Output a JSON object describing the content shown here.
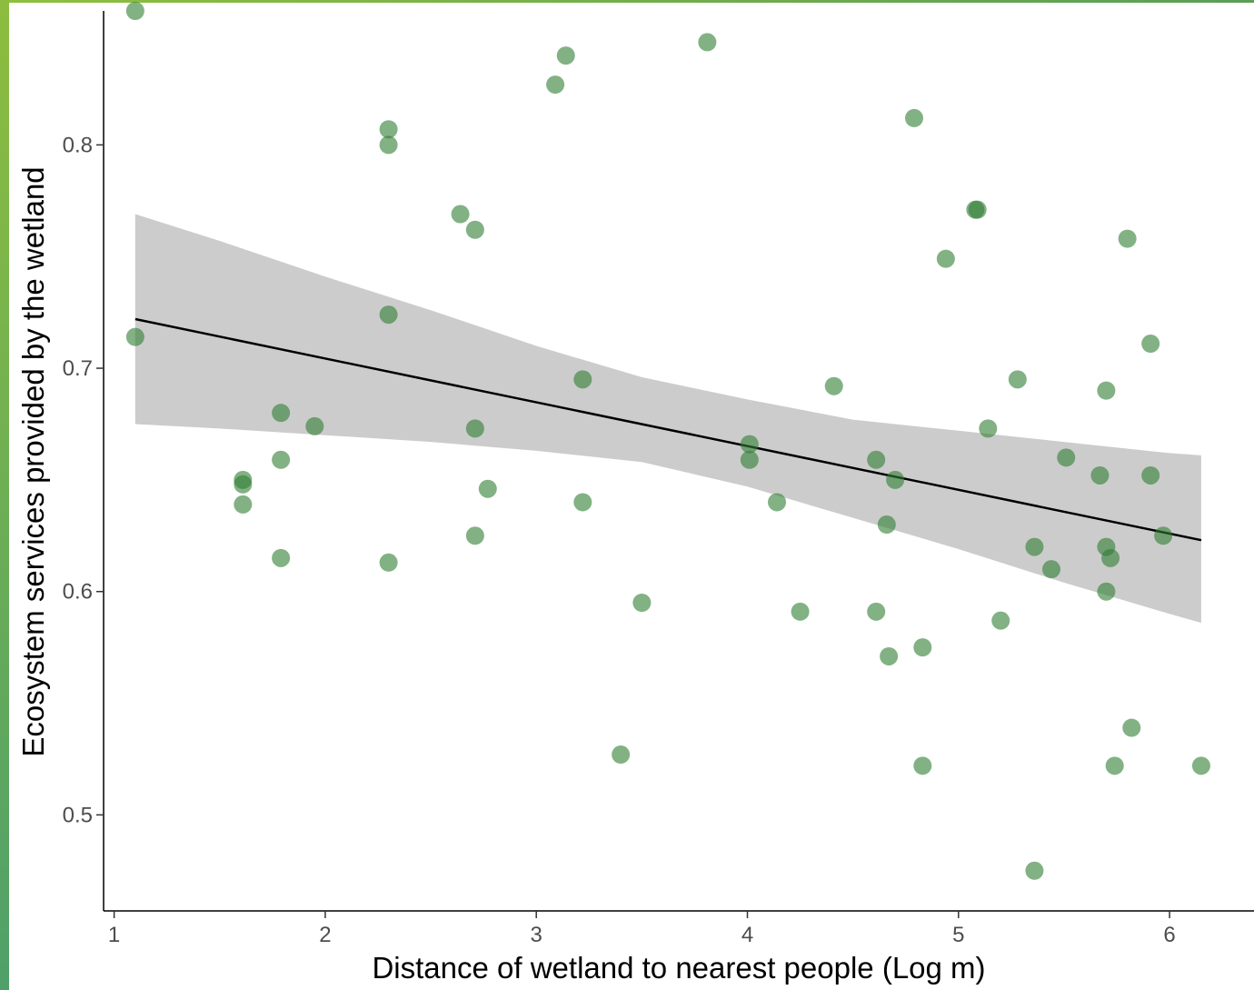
{
  "chart_data": {
    "type": "scatter",
    "xlabel": "Distance of wetland to nearest people (Log m)",
    "ylabel": "Ecosystem services provided by the wetland",
    "xlim": [
      0.95,
      6.4
    ],
    "ylim": [
      0.457,
      0.86
    ],
    "x_ticks": [
      1,
      2,
      3,
      4,
      5,
      6
    ],
    "x_tick_labels": [
      "1",
      "2",
      "3",
      "4",
      "5",
      "6"
    ],
    "y_ticks": [
      0.5,
      0.6,
      0.7,
      0.8
    ],
    "y_tick_labels": [
      "0.5",
      "0.6",
      "0.7",
      "0.8"
    ],
    "grid": false,
    "point_color": "#2e7d32",
    "band_color": "#cccccc",
    "line_color": "#000000",
    "points": [
      [
        1.1,
        0.86
      ],
      [
        1.1,
        0.714
      ],
      [
        1.61,
        0.65
      ],
      [
        1.61,
        0.648
      ],
      [
        1.61,
        0.639
      ],
      [
        1.79,
        0.68
      ],
      [
        1.79,
        0.659
      ],
      [
        1.79,
        0.615
      ],
      [
        1.95,
        0.674
      ],
      [
        2.3,
        0.807
      ],
      [
        2.3,
        0.8
      ],
      [
        2.3,
        0.724
      ],
      [
        2.3,
        0.613
      ],
      [
        2.64,
        0.769
      ],
      [
        2.71,
        0.762
      ],
      [
        2.71,
        0.673
      ],
      [
        2.71,
        0.625
      ],
      [
        2.77,
        0.646
      ],
      [
        3.09,
        0.827
      ],
      [
        3.14,
        0.84
      ],
      [
        3.22,
        0.695
      ],
      [
        3.22,
        0.64
      ],
      [
        3.4,
        0.527
      ],
      [
        3.5,
        0.595
      ],
      [
        3.81,
        0.846
      ],
      [
        4.01,
        0.666
      ],
      [
        4.01,
        0.659
      ],
      [
        4.14,
        0.64
      ],
      [
        4.25,
        0.591
      ],
      [
        4.41,
        0.692
      ],
      [
        4.61,
        0.659
      ],
      [
        4.61,
        0.591
      ],
      [
        4.66,
        0.63
      ],
      [
        4.67,
        0.571
      ],
      [
        4.7,
        0.65
      ],
      [
        4.79,
        0.812
      ],
      [
        4.83,
        0.575
      ],
      [
        4.83,
        0.522
      ],
      [
        4.94,
        0.749
      ],
      [
        5.08,
        0.771
      ],
      [
        5.09,
        0.771
      ],
      [
        5.14,
        0.673
      ],
      [
        5.2,
        0.587
      ],
      [
        5.28,
        0.695
      ],
      [
        5.36,
        0.62
      ],
      [
        5.36,
        0.475
      ],
      [
        5.44,
        0.61
      ],
      [
        5.51,
        0.66
      ],
      [
        5.67,
        0.652
      ],
      [
        5.7,
        0.69
      ],
      [
        5.7,
        0.62
      ],
      [
        5.7,
        0.6
      ],
      [
        5.72,
        0.615
      ],
      [
        5.74,
        0.522
      ],
      [
        5.8,
        0.758
      ],
      [
        5.82,
        0.539
      ],
      [
        5.91,
        0.711
      ],
      [
        5.91,
        0.652
      ],
      [
        5.97,
        0.625
      ],
      [
        6.15,
        0.522
      ]
    ],
    "fit_line": {
      "x": [
        1.1,
        6.15
      ],
      "y": [
        0.722,
        0.623
      ]
    },
    "confidence_band": {
      "x": [
        1.1,
        1.5,
        2.0,
        2.5,
        3.0,
        3.5,
        4.0,
        4.5,
        5.0,
        5.5,
        6.0,
        6.15
      ],
      "upper": [
        0.769,
        0.757,
        0.741,
        0.726,
        0.71,
        0.696,
        0.686,
        0.677,
        0.672,
        0.667,
        0.662,
        0.661
      ],
      "lower": [
        0.675,
        0.673,
        0.67,
        0.667,
        0.663,
        0.658,
        0.647,
        0.633,
        0.619,
        0.604,
        0.59,
        0.586
      ]
    }
  }
}
